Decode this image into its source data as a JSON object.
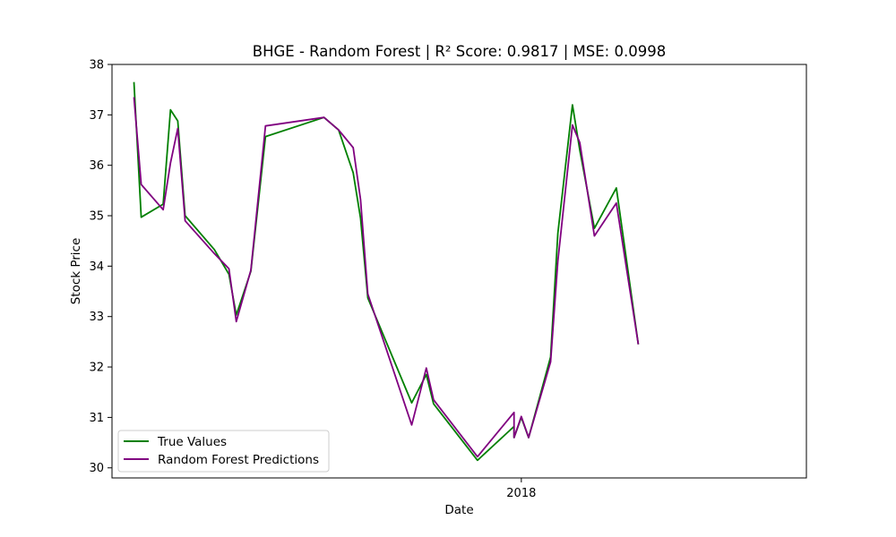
{
  "chart_data": {
    "type": "line",
    "title": "BHGE - Random Forest | R² Score: 0.9817 | MSE: 0.0998",
    "xlabel": "Date",
    "ylabel": "Stock Price",
    "ylim": [
      29.8,
      38.0
    ],
    "xlim": [
      "2017-11-06",
      "2018-02-09"
    ],
    "y_ticks": [
      30,
      31,
      32,
      33,
      34,
      35,
      36,
      37,
      38
    ],
    "x_ticks": [
      {
        "date": "2018-01-01",
        "label": "2018"
      }
    ],
    "grid": false,
    "legend_position": "lower-left",
    "x": [
      "2017-11-09",
      "2017-11-10",
      "2017-11-13",
      "2017-11-14",
      "2017-11-15",
      "2017-11-16",
      "2017-11-20",
      "2017-11-22",
      "2017-11-23",
      "2017-11-25",
      "2017-11-27",
      "2017-12-05",
      "2017-12-07",
      "2017-12-09",
      "2017-12-10",
      "2017-12-11",
      "2017-12-17",
      "2017-12-19",
      "2017-12-20",
      "2017-12-26",
      "2017-12-31",
      "2017-12-31",
      "2018-01-01",
      "2018-01-02",
      "2018-01-05",
      "2018-01-06",
      "2018-01-08",
      "2018-01-09",
      "2018-01-11",
      "2018-01-14"
    ],
    "series": [
      {
        "name": "True Values",
        "color": "#008000",
        "values": [
          37.65,
          34.97,
          35.23,
          37.1,
          36.88,
          35.0,
          34.33,
          33.84,
          33.03,
          33.9,
          36.57,
          36.95,
          36.7,
          35.85,
          34.95,
          33.37,
          31.29,
          31.85,
          31.27,
          30.15,
          30.82,
          30.6,
          31.0,
          30.6,
          32.2,
          34.65,
          37.2,
          36.3,
          34.75,
          35.55
        ]
      },
      {
        "name": "Random Forest Predictions",
        "color": "#800080",
        "values": [
          37.35,
          35.62,
          35.12,
          36.05,
          36.73,
          34.9,
          34.25,
          33.95,
          32.9,
          33.92,
          36.78,
          36.95,
          36.7,
          36.35,
          35.32,
          33.45,
          30.85,
          31.98,
          31.35,
          30.22,
          31.1,
          30.6,
          31.02,
          30.6,
          32.1,
          34.1,
          36.8,
          36.45,
          34.6,
          35.25
        ]
      }
    ],
    "last_point_shared": {
      "date": "2018-01-17",
      "value": 32.45
    }
  }
}
